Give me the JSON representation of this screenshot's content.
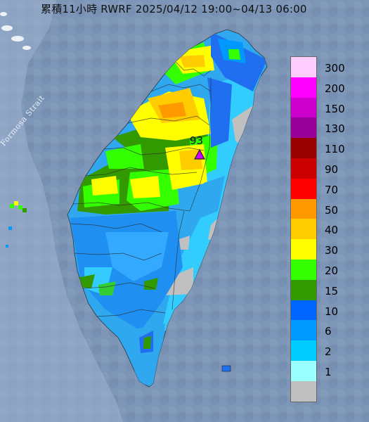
{
  "title": "累積11小時 RWRF 2025/04/12 19:00~04/13 06:00",
  "strait_label": "Formosa Strait",
  "peak": {
    "value": "93",
    "marker_color": "#cc00ff"
  },
  "legend": {
    "levels": [
      {
        "label": "300",
        "color": "#ffccff"
      },
      {
        "label": "200",
        "color": "#ff00ff"
      },
      {
        "label": "150",
        "color": "#cc00cc"
      },
      {
        "label": "130",
        "color": "#990099"
      },
      {
        "label": "110",
        "color": "#990000"
      },
      {
        "label": "90",
        "color": "#cc0000"
      },
      {
        "label": "70",
        "color": "#ff0000"
      },
      {
        "label": "50",
        "color": "#ff9900"
      },
      {
        "label": "40",
        "color": "#ffcc00"
      },
      {
        "label": "30",
        "color": "#ffff00"
      },
      {
        "label": "20",
        "color": "#33ff00"
      },
      {
        "label": "15",
        "color": "#339900"
      },
      {
        "label": "10",
        "color": "#0066ff"
      },
      {
        "label": "6",
        "color": "#0099ff"
      },
      {
        "label": "2",
        "color": "#00ccff"
      },
      {
        "label": "1",
        "color": "#99ffff"
      },
      {
        "label": "",
        "color": "#c0c0c0"
      }
    ]
  },
  "colors": {
    "sea": "#7d95b6",
    "land_dry": "#c0c0c0"
  }
}
